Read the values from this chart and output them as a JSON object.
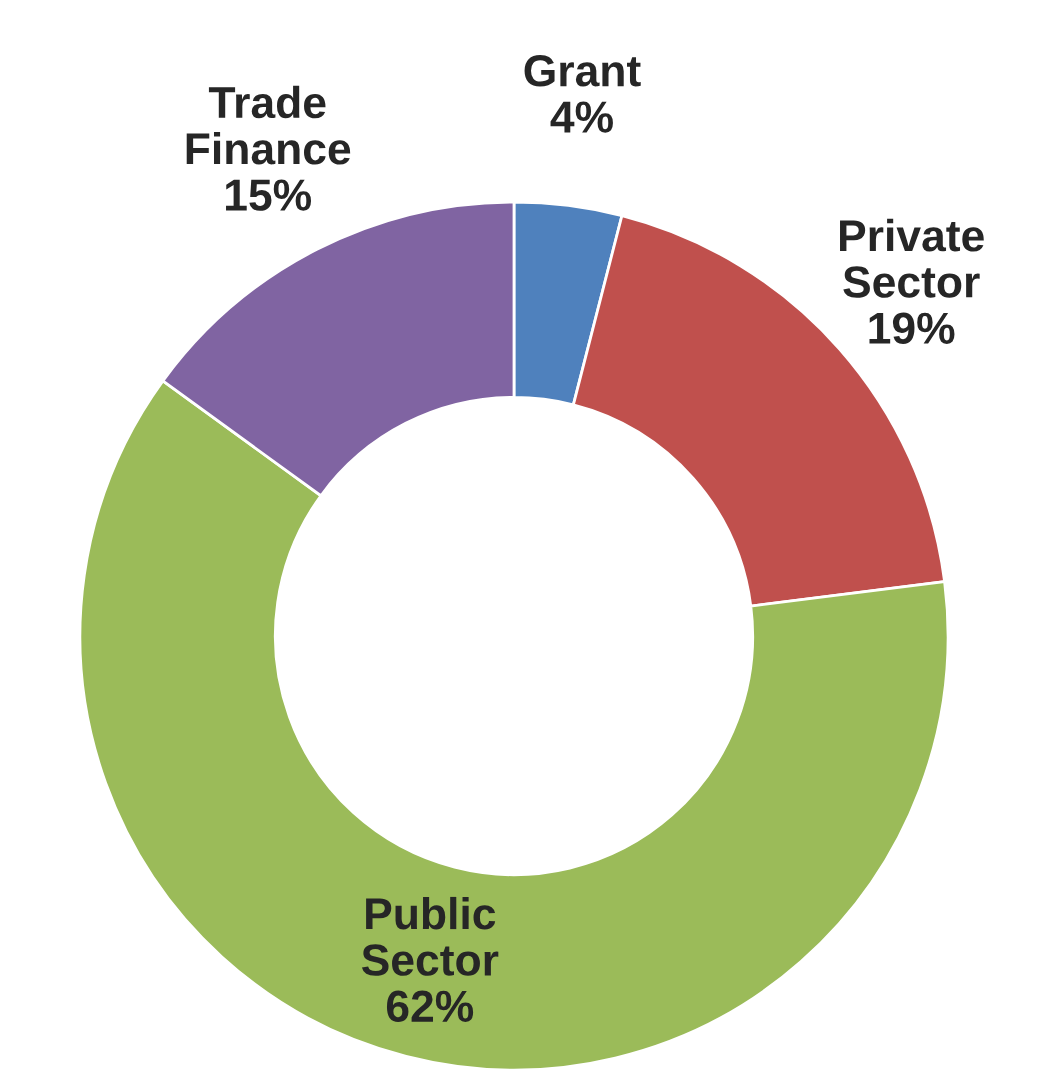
{
  "chart_data": {
    "type": "donut",
    "categories": [
      "Grant",
      "Private Sector",
      "Public Sector",
      "Trade Finance"
    ],
    "values": [
      4,
      19,
      62,
      15
    ],
    "value_labels": [
      "4%",
      "19%",
      "62%",
      "15%"
    ],
    "colors": [
      "#4f81bd",
      "#c0504d",
      "#9bbb59",
      "#8064a2"
    ]
  }
}
